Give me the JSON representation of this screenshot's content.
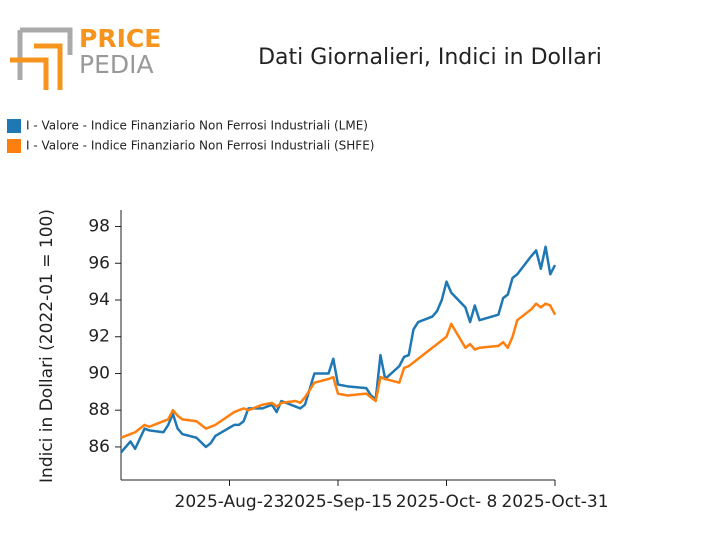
{
  "logo": {
    "top": "PRICE",
    "bottom": "PEDIA"
  },
  "chart_data": {
    "type": "line",
    "title": "Dati Giornalieri, Indici in Dollari",
    "y_label": "Indici in Dollari (2022-01 = 100)",
    "x": [
      "2025-07-31",
      "2025-08-02",
      "2025-08-03",
      "2025-08-05",
      "2025-08-06",
      "2025-08-09",
      "2025-08-10",
      "2025-08-11",
      "2025-08-12",
      "2025-08-13",
      "2025-08-16",
      "2025-08-18",
      "2025-08-19",
      "2025-08-20",
      "2025-08-24",
      "2025-08-25",
      "2025-08-26",
      "2025-08-27",
      "2025-08-30",
      "2025-09-01",
      "2025-09-02",
      "2025-09-03",
      "2025-09-06",
      "2025-09-07",
      "2025-09-08",
      "2025-09-10",
      "2025-09-13",
      "2025-09-14",
      "2025-09-15",
      "2025-09-17",
      "2025-09-21",
      "2025-09-22",
      "2025-09-23",
      "2025-09-24",
      "2025-09-25",
      "2025-09-28",
      "2025-09-29",
      "2025-09-30",
      "2025-10-01",
      "2025-10-02",
      "2025-10-05",
      "2025-10-06",
      "2025-10-07",
      "2025-10-08",
      "2025-10-09",
      "2025-10-12",
      "2025-10-13",
      "2025-10-14",
      "2025-10-15",
      "2025-10-19",
      "2025-10-20",
      "2025-10-21",
      "2025-10-22",
      "2025-10-23",
      "2025-10-26",
      "2025-10-27",
      "2025-10-28",
      "2025-10-29",
      "2025-10-30",
      "2025-10-31"
    ],
    "series": [
      {
        "name": "I - Valore - Indice Finanziario Non Ferrosi Industriali (LME)",
        "color": "#1f77b4",
        "values": [
          85.7,
          86.3,
          85.9,
          87.0,
          86.9,
          86.8,
          87.2,
          87.8,
          87.0,
          86.7,
          86.5,
          86.0,
          86.2,
          86.6,
          87.2,
          87.2,
          87.4,
          88.1,
          88.1,
          88.3,
          87.9,
          88.5,
          88.2,
          88.1,
          88.3,
          90.0,
          90.0,
          90.8,
          89.4,
          89.3,
          89.2,
          88.8,
          88.6,
          91.0,
          89.7,
          90.4,
          90.9,
          91.0,
          92.4,
          92.8,
          93.1,
          93.4,
          94.0,
          95.0,
          94.4,
          93.6,
          92.8,
          93.7,
          92.9,
          93.2,
          94.1,
          94.3,
          95.2,
          95.4,
          96.4,
          96.7,
          95.7,
          96.9,
          95.4,
          95.9
        ]
      },
      {
        "name": "I - Valore - Indice Finanziario Non Ferrosi Industriali (SHFE)",
        "color": "#ff7f0e",
        "values": [
          86.5,
          86.7,
          86.8,
          87.2,
          87.1,
          87.4,
          87.5,
          88.0,
          87.7,
          87.5,
          87.4,
          87.0,
          87.1,
          87.2,
          87.9,
          88.0,
          88.1,
          88.0,
          88.3,
          88.4,
          88.2,
          88.4,
          88.5,
          88.4,
          88.7,
          89.5,
          89.7,
          89.8,
          88.9,
          88.8,
          88.9,
          88.7,
          88.5,
          89.8,
          89.7,
          89.5,
          90.3,
          90.4,
          90.6,
          90.8,
          91.4,
          91.6,
          91.8,
          92.0,
          92.7,
          91.4,
          91.6,
          91.3,
          91.4,
          91.5,
          91.7,
          91.4,
          92.0,
          92.9,
          93.5,
          93.8,
          93.6,
          93.8,
          93.7,
          93.2
        ]
      }
    ],
    "xlim": [
      "2025-07-31",
      "2025-10-31"
    ],
    "xticks": [
      {
        "value": "2025-08-23",
        "label": "2025-Aug-23"
      },
      {
        "value": "2025-09-15",
        "label": "2025-Sep-15"
      },
      {
        "value": "2025-10-08",
        "label": "2025-Oct- 8"
      },
      {
        "value": "2025-10-31",
        "label": "2025-Oct-31"
      }
    ],
    "ylim": [
      84.2,
      98.9
    ],
    "yticks": [
      86,
      88,
      90,
      92,
      94,
      96,
      98
    ],
    "grid": false,
    "legend": "top-left"
  }
}
